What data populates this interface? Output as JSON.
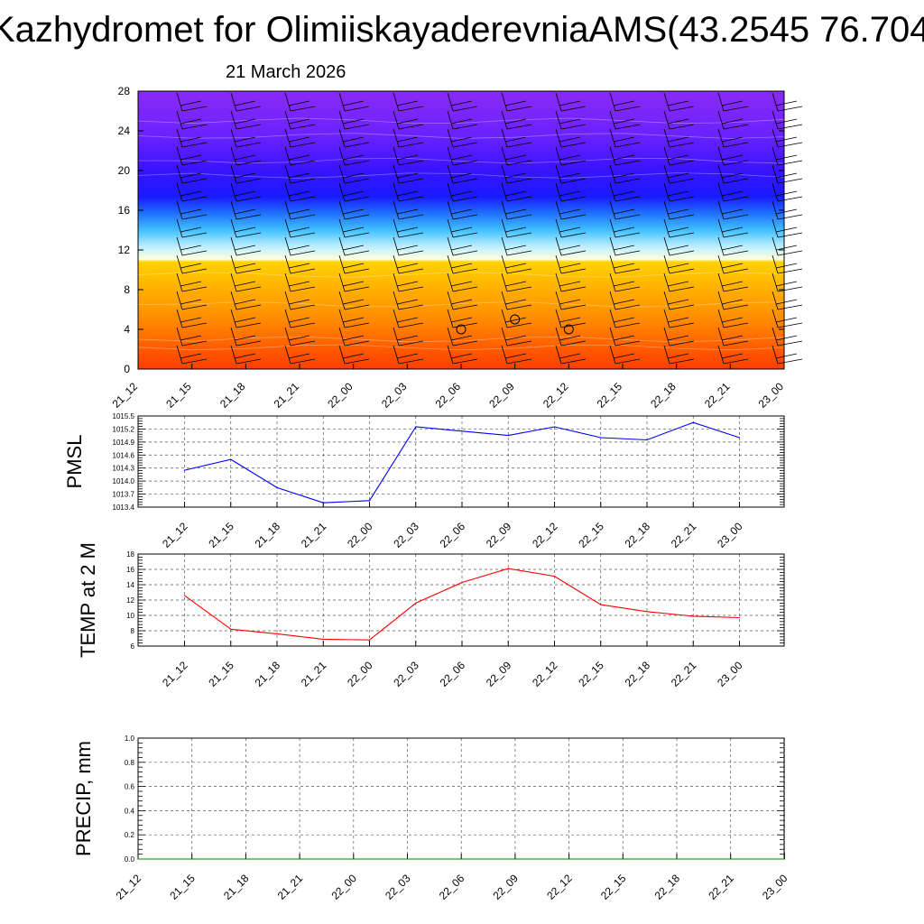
{
  "header": {
    "title": "Kazhydromet for OlimiiskayaderevniaAMS(43.2545 76.704",
    "subtitle": "21 March 2026"
  },
  "chart_data": [
    {
      "type": "heatmap",
      "name": "cross-section",
      "x_ticks": [
        "21_12",
        "21_15",
        "21_18",
        "21_21",
        "22_00",
        "22_03",
        "22_06",
        "22_09",
        "22_12",
        "22_15",
        "22_18",
        "22_21",
        "23_00"
      ],
      "ylim": [
        0,
        28
      ],
      "y_ticks": [
        0,
        4,
        8,
        12,
        16,
        20,
        24,
        28
      ],
      "cloud_markers": [
        {
          "x": "22_06",
          "y": 4
        },
        {
          "x": "22_09",
          "y": 5
        },
        {
          "x": "22_12",
          "y": 4
        }
      ]
    },
    {
      "type": "line",
      "name": "pmsl",
      "ylabel": "PMSL",
      "color": "#0000ff",
      "x": [
        "21_12",
        "21_15",
        "21_18",
        "21_21",
        "22_00",
        "22_03",
        "22_06",
        "22_09",
        "22_12",
        "22_15",
        "22_18",
        "22_21",
        "23_00"
      ],
      "values": [
        1014.25,
        1014.5,
        1013.85,
        1013.5,
        1013.55,
        1015.25,
        1015.15,
        1015.05,
        1015.25,
        1015.0,
        1014.95,
        1015.35,
        1015.0
      ],
      "ylim": [
        1013.4,
        1015.5
      ],
      "y_ticks": [
        "1013.4",
        "1013.7",
        "1014.0",
        "1014.3",
        "1014.6",
        "1014.9",
        "1015.2",
        "1015.5"
      ]
    },
    {
      "type": "line",
      "name": "temp",
      "ylabel": "TEMP at 2 M",
      "color": "#ff0000",
      "x": [
        "21_12",
        "21_15",
        "21_18",
        "21_21",
        "22_00",
        "22_03",
        "22_06",
        "22_09",
        "22_12",
        "22_15",
        "22_18",
        "22_21",
        "23_00"
      ],
      "values": [
        12.6,
        8.2,
        7.6,
        6.9,
        6.8,
        11.6,
        14.3,
        16.1,
        15.1,
        11.4,
        10.5,
        9.9,
        9.7
      ],
      "ylim": [
        6,
        18
      ],
      "y_ticks": [
        "6",
        "8",
        "10",
        "12",
        "14",
        "16",
        "18"
      ]
    },
    {
      "type": "line",
      "name": "precip",
      "ylabel": "PRECIP, mm",
      "color": "#008000",
      "x": [
        "21_12",
        "21_15",
        "21_18",
        "21_21",
        "22_00",
        "22_03",
        "22_06",
        "22_09",
        "22_12",
        "22_15",
        "22_18",
        "22_21",
        "23_00"
      ],
      "values": [
        0,
        0,
        0,
        0,
        0,
        0,
        0,
        0,
        0,
        0,
        0,
        0,
        0
      ],
      "ylim": [
        0,
        1.0
      ],
      "y_ticks": [
        "0.0",
        "0.2",
        "0.4",
        "0.6",
        "0.8",
        "1.0"
      ]
    }
  ]
}
